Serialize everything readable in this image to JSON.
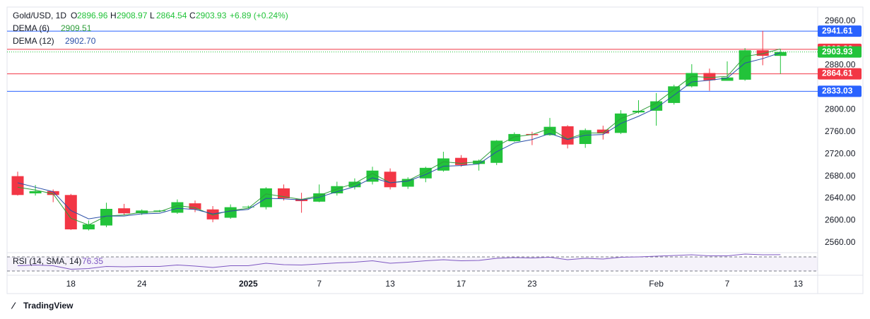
{
  "chart_data": {
    "type": "candlestick",
    "title": "Gold/USD, 1D",
    "ohlc_labels": [
      "O",
      "H",
      "L",
      "C"
    ],
    "last_ohlc": [
      2896.96,
      2908.97,
      2864.54,
      2903.93
    ],
    "change": "+6.89 (+0.24%)",
    "categories": [
      null,
      null,
      null,
      "18",
      null,
      null,
      null,
      "24",
      null,
      null,
      null,
      null,
      null,
      "2025",
      null,
      null,
      null,
      "7",
      null,
      null,
      null,
      "13",
      null,
      null,
      null,
      "17",
      null,
      null,
      null,
      "23",
      null,
      null,
      null,
      null,
      null,
      null,
      "Feb",
      null,
      null,
      null,
      "7",
      null,
      null,
      null,
      "13"
    ],
    "open": [
      2680,
      2649,
      2653,
      2646,
      2584,
      2591,
      2622,
      2613,
      2617,
      2614,
      2631,
      2620,
      2605,
      2624,
      2624,
      2658,
      2639,
      2634,
      2649,
      2660,
      2670,
      2688,
      2661,
      2676,
      2690,
      2713,
      2702,
      2704,
      2743,
      2756,
      2754,
      2770,
      2738,
      2764,
      2758,
      2795,
      2798,
      2812,
      2842,
      2866,
      2852,
      2854,
      2907,
      2896.96,
      null
    ],
    "high": [
      2688,
      2664,
      2656,
      2648,
      2600,
      2632,
      2630,
      2620,
      2619,
      2638,
      2636,
      2626,
      2629,
      2627,
      2660,
      2665,
      2650,
      2665,
      2670,
      2676,
      2697,
      2694,
      2678,
      2697,
      2724,
      2718,
      2710,
      2745,
      2759,
      2760,
      2785,
      2772,
      2766,
      2771,
      2799,
      2817,
      2830,
      2845,
      2882,
      2874,
      2887,
      2911,
      2942,
      2908.97,
      null
    ],
    "low": [
      2645,
      2645,
      2633,
      2583,
      2582,
      2588,
      2610,
      2610,
      2615,
      2612,
      2615,
      2597,
      2603,
      2622,
      2620,
      2636,
      2614,
      2633,
      2645,
      2656,
      2665,
      2656,
      2657,
      2669,
      2688,
      2697,
      2690,
      2700,
      2742,
      2736,
      2753,
      2730,
      2731,
      2746,
      2756,
      2793,
      2771,
      2809,
      2840,
      2834,
      2852,
      2852,
      2880,
      2864.54,
      null
    ],
    "close": [
      2646,
      2653,
      2646,
      2584,
      2593,
      2621,
      2613,
      2618,
      2618,
      2633,
      2620,
      2602,
      2624,
      2625,
      2658,
      2640,
      2635,
      2649,
      2662,
      2670,
      2690,
      2660,
      2675,
      2695,
      2712,
      2700,
      2708,
      2744,
      2756,
      2754,
      2769,
      2737,
      2763,
      2757,
      2793,
      2798,
      2815,
      2842,
      2866,
      2853,
      2858,
      2907,
      2897.04,
      2903.93,
      null
    ],
    "up_color": "#22c33a",
    "down_color": "#f23645",
    "series": [
      {
        "name": "DEMA (6)",
        "color": "#2e9e3a",
        "value_label": "2909.51",
        "values": [
          2660,
          2655,
          2648,
          2604,
          2592,
          2608,
          2610,
          2615,
          2616,
          2627,
          2623,
          2610,
          2618,
          2622,
          2648,
          2643,
          2638,
          2645,
          2657,
          2667,
          2685,
          2668,
          2672,
          2688,
          2706,
          2703,
          2706,
          2734,
          2751,
          2755,
          2766,
          2747,
          2758,
          2758,
          2784,
          2796,
          2812,
          2836,
          2860,
          2858,
          2860,
          2896,
          2901,
          2909.51,
          null
        ]
      },
      {
        "name": "DEMA (12)",
        "color": "#2a4fa8",
        "value_label": "2902.70",
        "values": [
          2668,
          2660,
          2652,
          2618,
          2603,
          2608,
          2608,
          2612,
          2613,
          2622,
          2620,
          2612,
          2617,
          2620,
          2640,
          2639,
          2637,
          2642,
          2652,
          2661,
          2677,
          2668,
          2671,
          2683,
          2698,
          2699,
          2702,
          2724,
          2740,
          2746,
          2757,
          2746,
          2754,
          2755,
          2775,
          2788,
          2803,
          2826,
          2850,
          2853,
          2857,
          2884,
          2892,
          2902.7,
          null
        ]
      }
    ],
    "price_levels": [
      {
        "value": 2941.61,
        "color": "#2962ff",
        "style": "solid"
      },
      {
        "value": 2908.83,
        "color": "#f23645",
        "style": "solid"
      },
      {
        "value": 2903.93,
        "color": "#22c33a",
        "style": "dotted"
      },
      {
        "value": 2864.61,
        "color": "#f23645",
        "style": "solid"
      },
      {
        "value": 2833.03,
        "color": "#2962ff",
        "style": "solid"
      }
    ],
    "ylim": [
      2542,
      2985
    ],
    "yticks": [
      {
        "value": 2560,
        "label": "2560.00"
      },
      {
        "value": 2600,
        "label": "2600.00"
      },
      {
        "value": 2640,
        "label": "2640.00"
      },
      {
        "value": 2680,
        "label": "2680.00"
      },
      {
        "value": 2720,
        "label": "2720.00"
      },
      {
        "value": 2760,
        "label": "2760.00"
      },
      {
        "value": 2800,
        "label": "2800.00"
      },
      {
        "value": 2880,
        "label": "2880.00"
      },
      {
        "value": 2960,
        "label": "2960.00"
      }
    ],
    "rsi": {
      "name": "RSI (14, SMA, 14)",
      "color": "#7e57c2",
      "last": 76.35,
      "ylim": [
        18,
        82
      ],
      "levels": [
        70,
        30
      ],
      "values": [
        45,
        47,
        45,
        35,
        37,
        43,
        42,
        43,
        43,
        47,
        44,
        40,
        45,
        45,
        52,
        48,
        47,
        50,
        53,
        55,
        59,
        52,
        55,
        59,
        62,
        59,
        60,
        66,
        68,
        67,
        69,
        62,
        66,
        64,
        69,
        70,
        72,
        74,
        76,
        73,
        73,
        78,
        76,
        76.35,
        null
      ]
    },
    "brand": "TradingView"
  }
}
